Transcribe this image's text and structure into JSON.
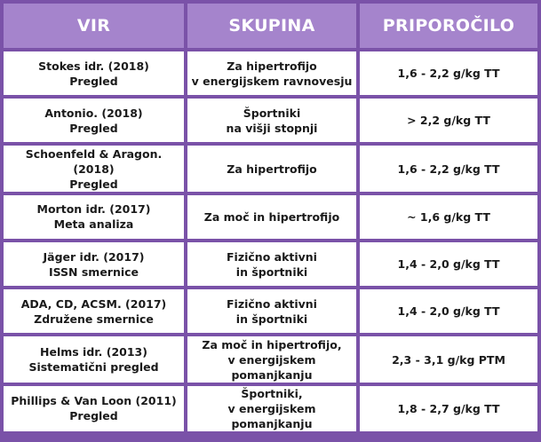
{
  "headers": {
    "source": "VIR",
    "group": "SKUPINA",
    "recommendation": "PRIPOROČILO"
  },
  "rows": [
    {
      "source": [
        "Stokes idr. (2018)",
        "Pregled"
      ],
      "group": [
        "Za hipertrofijo",
        "v energijskem ravnovesju"
      ],
      "recommendation": "1,6 - 2,2 g/kg TT"
    },
    {
      "source": [
        "Antonio. (2018)",
        "Pregled"
      ],
      "group": [
        "Športniki",
        "na višji stopnji"
      ],
      "recommendation": "> 2,2  g/kg TT"
    },
    {
      "source": [
        "Schoenfeld & Aragon. (2018)",
        "Pregled"
      ],
      "group": [
        "Za hipertrofijo"
      ],
      "recommendation": "1,6 - 2,2 g/kg TT"
    },
    {
      "source": [
        "Morton idr. (2017)",
        "Meta analiza"
      ],
      "group": [
        "Za moč in hipertrofijo"
      ],
      "recommendation": "~ 1,6 g/kg TT"
    },
    {
      "source": [
        "Jäger idr. (2017)",
        "ISSN smernice"
      ],
      "group": [
        "Fizično aktivni",
        "in športniki"
      ],
      "recommendation": "1,4 - 2,0 g/kg TT"
    },
    {
      "source": [
        "ADA, CD, ACSM. (2017)",
        "Združene smernice"
      ],
      "group": [
        "Fizično aktivni",
        "in športniki"
      ],
      "recommendation": "1,4 - 2,0 g/kg TT"
    },
    {
      "source": [
        "Helms idr. (2013)",
        "Sistematični pregled"
      ],
      "group": [
        "Za moč in hipertrofijo,",
        "v energijskem pomanjkanju"
      ],
      "recommendation": "2,3 - 3,1 g/kg PTM"
    },
    {
      "source": [
        "Phillips & Van Loon (2011)",
        "Pregled"
      ],
      "group": [
        "Športniki,",
        "v energijskem pomanjkanju"
      ],
      "recommendation": "1,8 - 2,7 g/kg TT"
    }
  ]
}
